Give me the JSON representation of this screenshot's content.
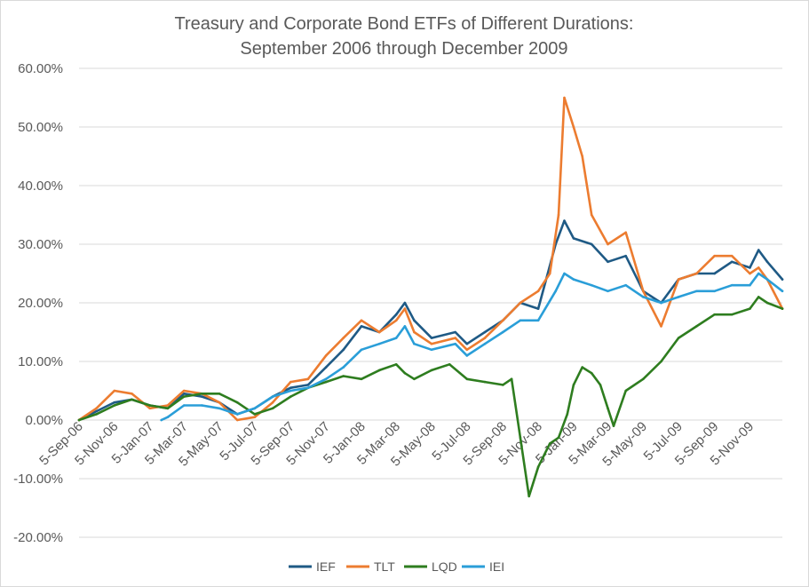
{
  "chart_data": {
    "type": "line",
    "title_lines": [
      "Treasury and Corporate Bond ETFs of Different Durations:",
      "September 2006 through December 2009"
    ],
    "xlabel": "",
    "ylabel": "",
    "ylim": [
      -0.2,
      0.6
    ],
    "y_ticks": [
      -0.2,
      -0.1,
      0.0,
      0.1,
      0.2,
      0.3,
      0.4,
      0.5,
      0.6
    ],
    "y_tick_labels": [
      "-20.00%",
      "-10.00%",
      "0.00%",
      "10.00%",
      "20.00%",
      "30.00%",
      "40.00%",
      "50.00%",
      "60.00%"
    ],
    "x_tick_labels": [
      "5-Sep-06",
      "5-Nov-06",
      "5-Jan-07",
      "5-Mar-07",
      "5-May-07",
      "5-Jul-07",
      "5-Sep-07",
      "5-Nov-07",
      "5-Jan-08",
      "5-Mar-08",
      "5-May-08",
      "5-Jul-08",
      "5-Sep-08",
      "5-Nov-08",
      "5-Jan-09",
      "5-Mar-09",
      "5-May-09",
      "5-Jul-09",
      "5-Sep-09",
      "5-Nov-09"
    ],
    "x_range": [
      "2006-09-05",
      "2009-12-31"
    ],
    "gridlines": true,
    "legend_position": "bottom",
    "series": [
      {
        "name": "IEF",
        "color": "#1f5a85",
        "x": [
          "2006-09-05",
          "2006-10-05",
          "2006-11-05",
          "2006-12-05",
          "2007-01-05",
          "2007-02-05",
          "2007-03-05",
          "2007-04-05",
          "2007-05-05",
          "2007-06-05",
          "2007-07-05",
          "2007-08-05",
          "2007-09-05",
          "2007-10-05",
          "2007-11-05",
          "2007-12-05",
          "2008-01-05",
          "2008-02-05",
          "2008-03-05",
          "2008-03-20",
          "2008-04-05",
          "2008-05-05",
          "2008-06-15",
          "2008-07-05",
          "2008-08-05",
          "2008-09-05",
          "2008-10-05",
          "2008-11-05",
          "2008-12-05",
          "2008-12-20",
          "2009-01-05",
          "2009-02-05",
          "2009-03-05",
          "2009-04-05",
          "2009-05-05",
          "2009-06-05",
          "2009-07-05",
          "2009-08-05",
          "2009-09-05",
          "2009-10-05",
          "2009-11-05",
          "2009-11-20",
          "2009-12-05",
          "2009-12-31"
        ],
        "values": [
          0.0,
          0.015,
          0.03,
          0.035,
          0.025,
          0.02,
          0.045,
          0.04,
          0.03,
          0.01,
          0.02,
          0.04,
          0.055,
          0.06,
          0.09,
          0.12,
          0.16,
          0.15,
          0.18,
          0.2,
          0.17,
          0.14,
          0.15,
          0.13,
          0.15,
          0.17,
          0.2,
          0.19,
          0.3,
          0.34,
          0.31,
          0.3,
          0.27,
          0.28,
          0.22,
          0.2,
          0.24,
          0.25,
          0.25,
          0.27,
          0.26,
          0.29,
          0.27,
          0.24
        ]
      },
      {
        "name": "TLT",
        "color": "#ec7c30",
        "x": [
          "2006-09-05",
          "2006-10-05",
          "2006-11-05",
          "2006-12-05",
          "2007-01-05",
          "2007-02-05",
          "2007-03-05",
          "2007-04-05",
          "2007-05-05",
          "2007-06-05",
          "2007-07-05",
          "2007-08-05",
          "2007-09-05",
          "2007-10-05",
          "2007-11-05",
          "2007-12-05",
          "2008-01-05",
          "2008-02-05",
          "2008-03-05",
          "2008-03-20",
          "2008-04-05",
          "2008-05-05",
          "2008-06-15",
          "2008-07-05",
          "2008-08-05",
          "2008-09-05",
          "2008-10-05",
          "2008-11-05",
          "2008-11-25",
          "2008-12-10",
          "2008-12-20",
          "2009-01-05",
          "2009-01-20",
          "2009-02-05",
          "2009-03-05",
          "2009-04-05",
          "2009-05-05",
          "2009-06-05",
          "2009-07-05",
          "2009-08-05",
          "2009-09-05",
          "2009-10-05",
          "2009-11-05",
          "2009-11-20",
          "2009-12-05",
          "2009-12-31"
        ],
        "values": [
          0.0,
          0.02,
          0.05,
          0.045,
          0.02,
          0.025,
          0.05,
          0.045,
          0.03,
          0.0,
          0.005,
          0.03,
          0.065,
          0.07,
          0.11,
          0.14,
          0.17,
          0.15,
          0.17,
          0.19,
          0.15,
          0.13,
          0.14,
          0.12,
          0.14,
          0.17,
          0.2,
          0.22,
          0.25,
          0.35,
          0.55,
          0.5,
          0.45,
          0.35,
          0.3,
          0.32,
          0.22,
          0.16,
          0.24,
          0.25,
          0.28,
          0.28,
          0.25,
          0.26,
          0.24,
          0.19
        ]
      },
      {
        "name": "LQD",
        "color": "#2e7d1f",
        "x": [
          "2006-09-05",
          "2006-10-05",
          "2006-11-05",
          "2006-12-05",
          "2007-01-05",
          "2007-02-05",
          "2007-03-05",
          "2007-04-05",
          "2007-05-05",
          "2007-06-05",
          "2007-07-05",
          "2007-08-05",
          "2007-09-05",
          "2007-10-05",
          "2007-11-05",
          "2007-12-05",
          "2008-01-05",
          "2008-02-05",
          "2008-03-05",
          "2008-03-20",
          "2008-04-05",
          "2008-05-05",
          "2008-06-05",
          "2008-07-05",
          "2008-08-05",
          "2008-09-05",
          "2008-09-20",
          "2008-10-05",
          "2008-10-20",
          "2008-11-05",
          "2008-11-25",
          "2008-12-10",
          "2008-12-25",
          "2009-01-05",
          "2009-01-20",
          "2009-02-05",
          "2009-02-20",
          "2009-03-05",
          "2009-03-15",
          "2009-04-05",
          "2009-05-05",
          "2009-06-05",
          "2009-07-05",
          "2009-08-05",
          "2009-09-05",
          "2009-10-05",
          "2009-11-05",
          "2009-11-20",
          "2009-12-05",
          "2009-12-31"
        ],
        "values": [
          0.0,
          0.01,
          0.025,
          0.035,
          0.025,
          0.02,
          0.04,
          0.045,
          0.045,
          0.03,
          0.01,
          0.02,
          0.04,
          0.055,
          0.065,
          0.075,
          0.07,
          0.085,
          0.095,
          0.08,
          0.07,
          0.085,
          0.095,
          0.07,
          0.065,
          0.06,
          0.07,
          -0.03,
          -0.13,
          -0.08,
          -0.04,
          -0.03,
          0.01,
          0.06,
          0.09,
          0.08,
          0.06,
          0.02,
          -0.01,
          0.05,
          0.07,
          0.1,
          0.14,
          0.16,
          0.18,
          0.18,
          0.19,
          0.21,
          0.2,
          0.19
        ]
      },
      {
        "name": "IEI",
        "color": "#2a9ed8",
        "x": [
          "2007-01-25",
          "2007-02-05",
          "2007-03-05",
          "2007-04-05",
          "2007-05-05",
          "2007-06-05",
          "2007-07-05",
          "2007-08-05",
          "2007-09-05",
          "2007-10-05",
          "2007-11-05",
          "2007-12-05",
          "2008-01-05",
          "2008-02-05",
          "2008-03-05",
          "2008-03-20",
          "2008-04-05",
          "2008-05-05",
          "2008-06-15",
          "2008-07-05",
          "2008-08-05",
          "2008-09-05",
          "2008-10-05",
          "2008-11-05",
          "2008-12-05",
          "2008-12-20",
          "2009-01-05",
          "2009-02-05",
          "2009-03-05",
          "2009-04-05",
          "2009-05-05",
          "2009-06-05",
          "2009-07-05",
          "2009-08-05",
          "2009-09-05",
          "2009-10-05",
          "2009-11-05",
          "2009-11-20",
          "2009-12-05",
          "2009-12-31"
        ],
        "values": [
          0.0,
          0.005,
          0.025,
          0.025,
          0.02,
          0.01,
          0.02,
          0.04,
          0.05,
          0.055,
          0.07,
          0.09,
          0.12,
          0.13,
          0.14,
          0.16,
          0.13,
          0.12,
          0.13,
          0.11,
          0.13,
          0.15,
          0.17,
          0.17,
          0.22,
          0.25,
          0.24,
          0.23,
          0.22,
          0.23,
          0.21,
          0.2,
          0.21,
          0.22,
          0.22,
          0.23,
          0.23,
          0.25,
          0.24,
          0.22
        ]
      }
    ]
  }
}
